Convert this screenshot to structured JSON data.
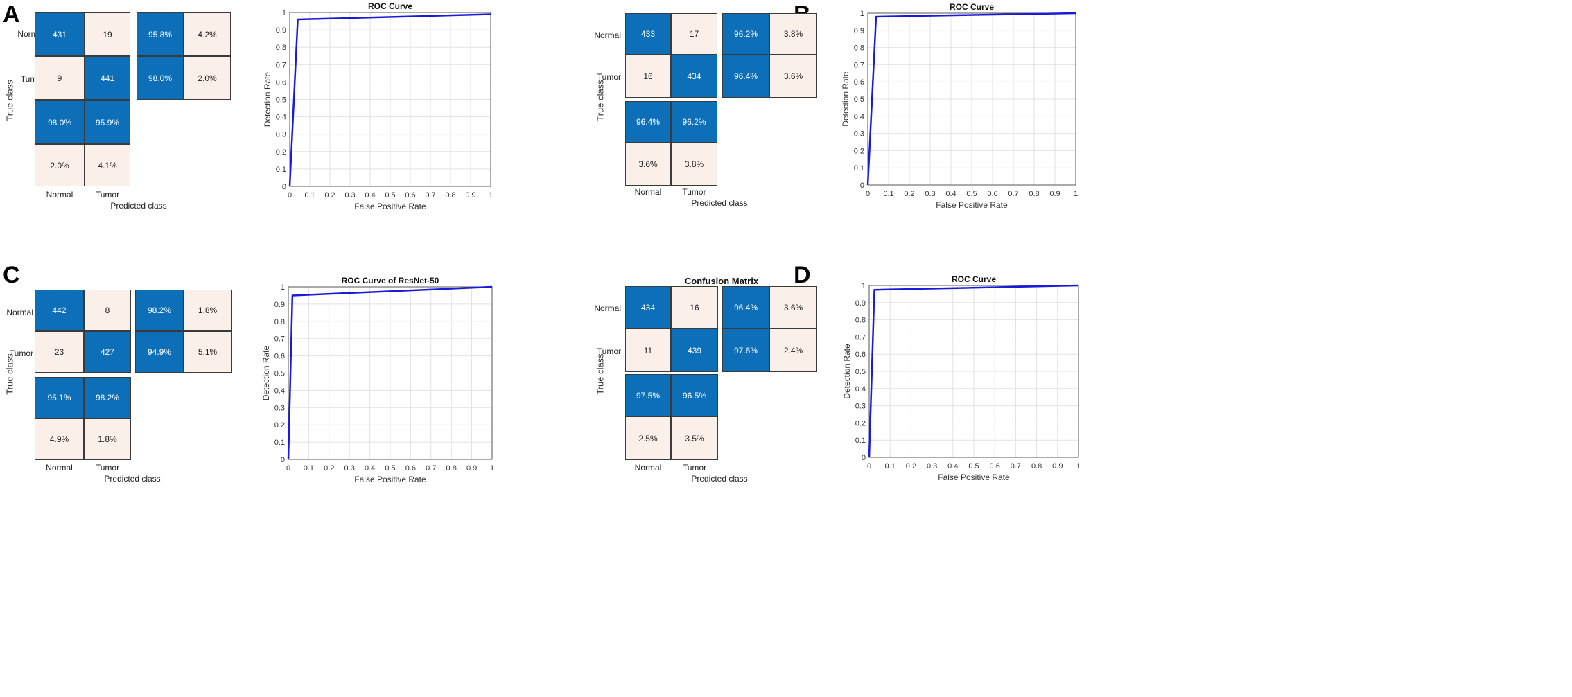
{
  "panels": [
    {
      "label": "A",
      "matrix_title": "",
      "class_names": [
        "Normal",
        "Tumor"
      ],
      "counts": [
        [
          "431",
          "19"
        ],
        [
          "9",
          "441"
        ]
      ],
      "row_summary": [
        [
          "95.8%",
          "4.2%"
        ],
        [
          "98.0%",
          "2.0%"
        ]
      ],
      "col_summary": [
        [
          "98.0%",
          "95.9%"
        ],
        [
          "2.0%",
          "4.1%"
        ]
      ],
      "true_label": "True class",
      "pred_label": "Predicted class"
    },
    {
      "label": "B",
      "matrix_title": "",
      "class_names": [
        "Normal",
        "Tumor"
      ],
      "counts": [
        [
          "433",
          "17"
        ],
        [
          "16",
          "434"
        ]
      ],
      "row_summary": [
        [
          "96.2%",
          "3.8%"
        ],
        [
          "96.4%",
          "3.6%"
        ]
      ],
      "col_summary": [
        [
          "96.4%",
          "96.2%"
        ],
        [
          "3.6%",
          "3.8%"
        ]
      ],
      "true_label": "True class",
      "pred_label": "Predicted class"
    },
    {
      "label": "C",
      "matrix_title": "",
      "class_names": [
        "Normal",
        "Tumor"
      ],
      "counts": [
        [
          "442",
          "8"
        ],
        [
          "23",
          "427"
        ]
      ],
      "row_summary": [
        [
          "98.2%",
          "1.8%"
        ],
        [
          "94.9%",
          "5.1%"
        ]
      ],
      "col_summary": [
        [
          "95.1%",
          "98.2%"
        ],
        [
          "4.9%",
          "1.8%"
        ]
      ],
      "true_label": "True class",
      "pred_label": "Predicted class"
    },
    {
      "label": "D",
      "matrix_title": "Confusion Matrix",
      "class_names": [
        "Normal",
        "Tumor"
      ],
      "counts": [
        [
          "434",
          "16"
        ],
        [
          "11",
          "439"
        ]
      ],
      "row_summary": [
        [
          "96.4%",
          "3.6%"
        ],
        [
          "97.6%",
          "2.4%"
        ]
      ],
      "col_summary": [
        [
          "97.5%",
          "96.5%"
        ],
        [
          "2.5%",
          "3.5%"
        ]
      ],
      "true_label": "True class",
      "pred_label": "Predicted class"
    }
  ],
  "colors": {
    "blue_cell": "#0d6fb8",
    "pink_cell": "#fbefea",
    "roc_line": "#1a1adb",
    "grid": "#e2e2e2"
  },
  "chart_data": [
    {
      "type": "line",
      "title": "ROC Curve",
      "xlabel": "False Positive Rate",
      "ylabel": "Detection Rate",
      "xlim": [
        0,
        1
      ],
      "ylim": [
        0,
        1
      ],
      "ticks": [
        "0",
        "0.1",
        "0.2",
        "0.3",
        "0.4",
        "0.5",
        "0.6",
        "0.7",
        "0.8",
        "0.9",
        "1"
      ],
      "x": [
        0,
        0.04,
        1
      ],
      "y": [
        0,
        0.96,
        0.99
      ]
    },
    {
      "type": "line",
      "title": "ROC Curve",
      "xlabel": "False Positive Rate",
      "ylabel": "Detection Rate",
      "xlim": [
        0,
        1
      ],
      "ylim": [
        0,
        1
      ],
      "ticks": [
        "0",
        "0.1",
        "0.2",
        "0.3",
        "0.4",
        "0.5",
        "0.6",
        "0.7",
        "0.8",
        "0.9",
        "1"
      ],
      "x": [
        0,
        0.04,
        1
      ],
      "y": [
        0,
        0.98,
        1.0
      ]
    },
    {
      "type": "line",
      "title": "ROC Curve of ResNet-50",
      "xlabel": "False Positive Rate",
      "ylabel": "Detection Rate",
      "xlim": [
        0,
        1
      ],
      "ylim": [
        0,
        1
      ],
      "ticks": [
        "0",
        "0.1",
        "0.2",
        "0.3",
        "0.4",
        "0.5",
        "0.6",
        "0.7",
        "0.8",
        "0.9",
        "1"
      ],
      "x": [
        0,
        0.02,
        1
      ],
      "y": [
        0,
        0.95,
        1.0
      ]
    },
    {
      "type": "line",
      "title": "ROC Curve",
      "xlabel": "False Positive Rate",
      "ylabel": "Detection Rate",
      "xlim": [
        0,
        1
      ],
      "ylim": [
        0,
        1
      ],
      "ticks": [
        "0",
        "0.1",
        "0.2",
        "0.3",
        "0.4",
        "0.5",
        "0.6",
        "0.7",
        "0.8",
        "0.9",
        "1"
      ],
      "x": [
        0,
        0.025,
        1
      ],
      "y": [
        0,
        0.975,
        1.0
      ]
    }
  ]
}
